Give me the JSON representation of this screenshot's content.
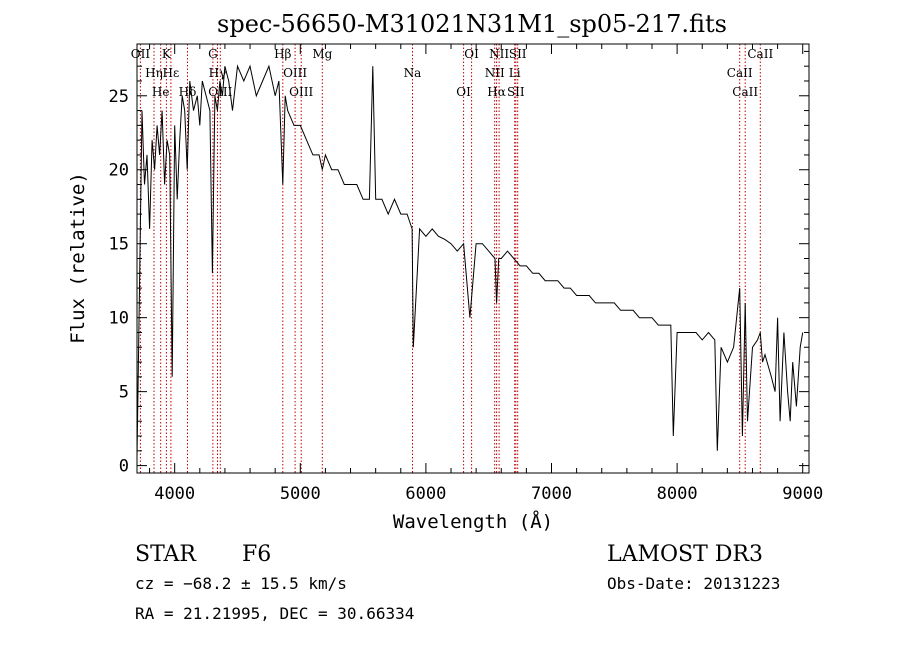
{
  "chart_data": {
    "type": "line",
    "title": "spec-56650-M31021N31M1_sp05-217.fits",
    "xlabel": "Wavelength (Å)",
    "ylabel": "Flux (relative)",
    "xlim": [
      3700,
      9050
    ],
    "ylim": [
      -0.5,
      28.5
    ],
    "xticks": [
      4000,
      5000,
      6000,
      7000,
      8000,
      9000
    ],
    "yticks": [
      0,
      5,
      10,
      15,
      20,
      25
    ],
    "series": [
      {
        "name": "spectrum",
        "x": [
          3700,
          3720,
          3740,
          3760,
          3780,
          3800,
          3820,
          3840,
          3860,
          3880,
          3900,
          3920,
          3940,
          3960,
          3980,
          4000,
          4020,
          4040,
          4060,
          4080,
          4100,
          4120,
          4150,
          4180,
          4200,
          4220,
          4250,
          4280,
          4300,
          4320,
          4340,
          4360,
          4380,
          4400,
          4430,
          4460,
          4500,
          4550,
          4600,
          4650,
          4700,
          4750,
          4800,
          4830,
          4861,
          4880,
          4900,
          4950,
          5000,
          5050,
          5100,
          5150,
          5175,
          5200,
          5250,
          5300,
          5350,
          5400,
          5450,
          5500,
          5550,
          5577,
          5600,
          5650,
          5700,
          5750,
          5800,
          5850,
          5890,
          5900,
          5950,
          6000,
          6050,
          6100,
          6150,
          6200,
          6250,
          6300,
          6350,
          6400,
          6450,
          6500,
          6550,
          6563,
          6580,
          6600,
          6650,
          6700,
          6750,
          6800,
          6850,
          6900,
          6950,
          7000,
          7050,
          7100,
          7150,
          7200,
          7250,
          7300,
          7350,
          7400,
          7450,
          7500,
          7550,
          7600,
          7650,
          7700,
          7750,
          7800,
          7850,
          7900,
          7950,
          7970,
          8000,
          8050,
          8100,
          8150,
          8200,
          8250,
          8300,
          8320,
          8350,
          8400,
          8450,
          8480,
          8498,
          8520,
          8542,
          8560,
          8600,
          8640,
          8662,
          8680,
          8700,
          8750,
          8780,
          8800,
          8820,
          8850,
          8880,
          8900,
          8920,
          8950,
          8980,
          9000
        ],
        "y": [
          0.5,
          12,
          24,
          19,
          21,
          16,
          22,
          20,
          23,
          21,
          24,
          19,
          22,
          21,
          6,
          23,
          18,
          22,
          25,
          24,
          20,
          26,
          24,
          25,
          23,
          26,
          25,
          24,
          13,
          25,
          24,
          26,
          25,
          27,
          26,
          24,
          27,
          26,
          27,
          25,
          26,
          27,
          25,
          26,
          19,
          25,
          24,
          23,
          23,
          22,
          21,
          21,
          20,
          21,
          20,
          20,
          19,
          19,
          19,
          18,
          18,
          27,
          18,
          18,
          17,
          18,
          17,
          17,
          16,
          8,
          16,
          15.5,
          16,
          15.5,
          15.3,
          15,
          14.5,
          15,
          10,
          15,
          15,
          14.5,
          14,
          11,
          14,
          14,
          14.5,
          14,
          13.5,
          13.5,
          13,
          13,
          12.5,
          12.5,
          12.5,
          12,
          12,
          11.5,
          11.5,
          11.5,
          11,
          11,
          11,
          11,
          10.5,
          10.5,
          10.5,
          10,
          10,
          10,
          9.5,
          9.5,
          9.5,
          2,
          9,
          9,
          9,
          9,
          8.5,
          9,
          8.5,
          1,
          8,
          7,
          8,
          10.5,
          12,
          2,
          11,
          3,
          8,
          8.5,
          9,
          7,
          7.5,
          6,
          5,
          10,
          3,
          9,
          5,
          3,
          7,
          4,
          8,
          9
        ]
      }
    ],
    "line_markers": [
      {
        "wavelength": 3727,
        "label": "OII"
      },
      {
        "wavelength": 3835,
        "label": "Hη"
      },
      {
        "wavelength": 3889,
        "label": "He"
      },
      {
        "wavelength": 3934,
        "label": "K"
      },
      {
        "wavelength": 3970,
        "label": "Hε"
      },
      {
        "wavelength": 4102,
        "label": "Hδ"
      },
      {
        "wavelength": 4304,
        "label": "G"
      },
      {
        "wavelength": 4341,
        "label": "Hγ"
      },
      {
        "wavelength": 4363,
        "label": "OIII"
      },
      {
        "wavelength": 4861,
        "label": "Hβ"
      },
      {
        "wavelength": 4959,
        "label": "OIII"
      },
      {
        "wavelength": 5007,
        "label": "OIII"
      },
      {
        "wavelength": 5175,
        "label": "Mg"
      },
      {
        "wavelength": 5893,
        "label": "Na"
      },
      {
        "wavelength": 6300,
        "label": "OI"
      },
      {
        "wavelength": 6364,
        "label": "OI"
      },
      {
        "wavelength": 6548,
        "label": "NII"
      },
      {
        "wavelength": 6563,
        "label": "Hα"
      },
      {
        "wavelength": 6583,
        "label": "NII"
      },
      {
        "wavelength": 6707,
        "label": "Li"
      },
      {
        "wavelength": 6716,
        "label": "SII"
      },
      {
        "wavelength": 6731,
        "label": "SII"
      },
      {
        "wavelength": 8498,
        "label": "CaII"
      },
      {
        "wavelength": 8542,
        "label": "CaII"
      },
      {
        "wavelength": 8662,
        "label": "CaII"
      }
    ]
  },
  "info": {
    "object_class": "STAR",
    "subclass": "F6",
    "survey": "LAMOST DR3",
    "cz": "cz = −68.2 ± 15.5 km/s",
    "obs_date": "Obs-Date: 20131223",
    "coords": "RA =  21.21995, DEC =  30.66334"
  }
}
